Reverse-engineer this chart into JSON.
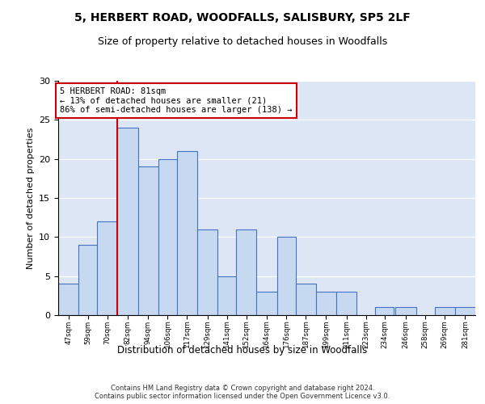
{
  "title1": "5, HERBERT ROAD, WOODFALLS, SALISBURY, SP5 2LF",
  "title2": "Size of property relative to detached houses in Woodfalls",
  "xlabel": "Distribution of detached houses by size in Woodfalls",
  "ylabel": "Number of detached properties",
  "annotation_line1": "5 HERBERT ROAD: 81sqm",
  "annotation_line2": "← 13% of detached houses are smaller (21)",
  "annotation_line3": "86% of semi-detached houses are larger (138) →",
  "property_sqm": 81,
  "bar_left_edges": [
    47,
    59,
    70,
    82,
    94,
    106,
    117,
    129,
    141,
    152,
    164,
    176,
    187,
    199,
    211,
    223,
    234,
    246,
    258,
    269,
    281
  ],
  "bar_widths": [
    12,
    11,
    12,
    12,
    12,
    11,
    12,
    12,
    11,
    12,
    12,
    11,
    12,
    12,
    12,
    11,
    11,
    12,
    11,
    12,
    12
  ],
  "bar_heights": [
    4,
    9,
    12,
    24,
    19,
    20,
    21,
    11,
    5,
    11,
    3,
    10,
    4,
    3,
    3,
    0,
    1,
    1,
    0,
    1,
    1
  ],
  "bar_facecolor": "#c6d9f0",
  "bar_edgecolor": "#4472c4",
  "vline_x": 82,
  "vline_color": "#cc0000",
  "annotation_box_edgecolor": "#cc0000",
  "annotation_box_facecolor": "white",
  "ylim": [
    0,
    30
  ],
  "yticks": [
    0,
    5,
    10,
    15,
    20,
    25,
    30
  ],
  "bg_color": "#dce6f4",
  "footer_line1": "Contains HM Land Registry data © Crown copyright and database right 2024.",
  "footer_line2": "Contains public sector information licensed under the Open Government Licence v3.0."
}
